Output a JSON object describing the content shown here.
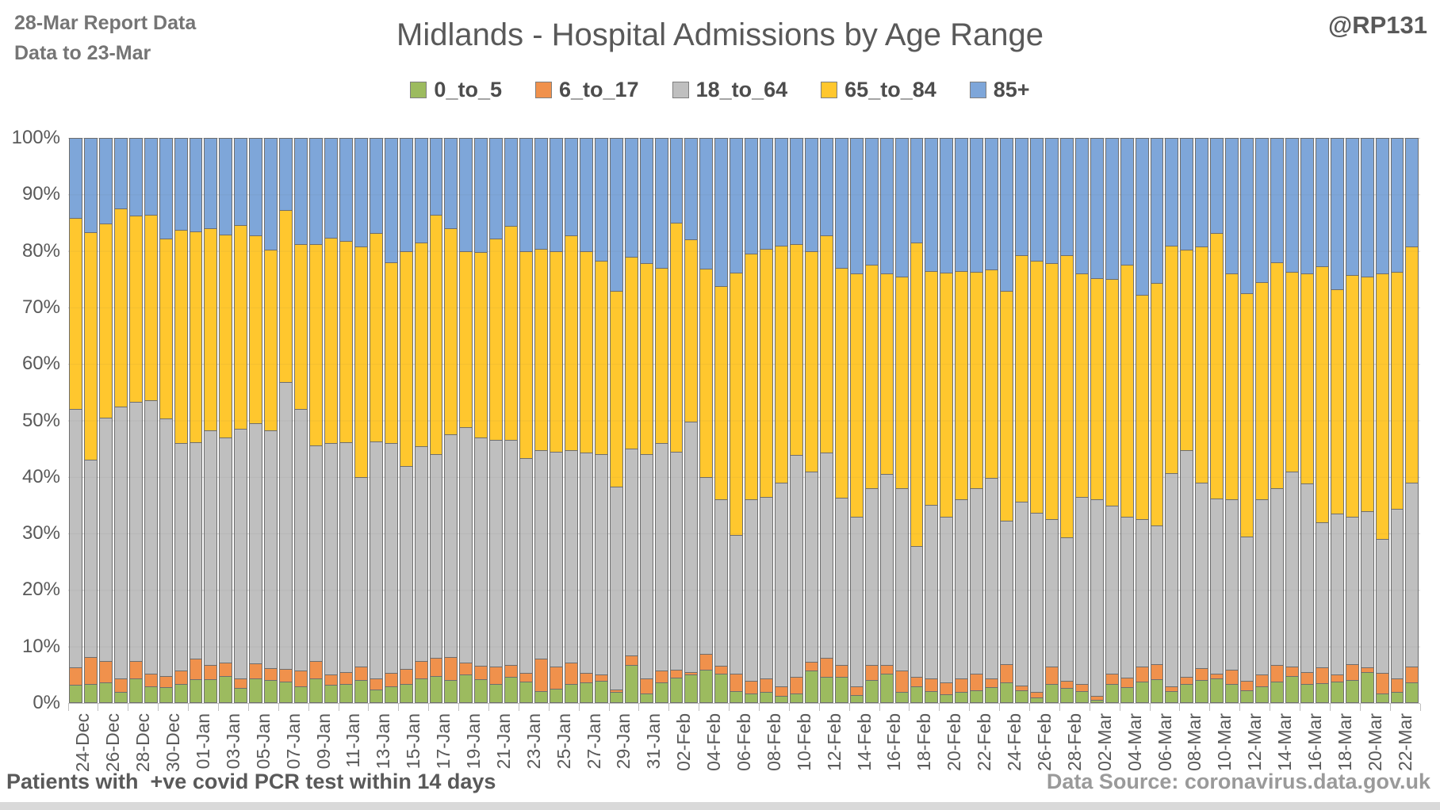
{
  "header": {
    "report_line1": "28-Mar Report Data",
    "report_line2": "Data to 23-Mar",
    "title": "Midlands - Hospital Admissions by Age Range",
    "handle": "@RP131"
  },
  "footer": {
    "left": "Patients with  +ve covid PCR test within 14 days",
    "right": "Data Source: coronavirus.data.gov.uk"
  },
  "legend": [
    {
      "label": "0_to_5",
      "color": "#9CBB5F"
    },
    {
      "label": "6_to_17",
      "color": "#F0914C"
    },
    {
      "label": "18_to_64",
      "color": "#BFBFBF"
    },
    {
      "label": "65_to_84",
      "color": "#FFC72E"
    },
    {
      "label": "85+",
      "color": "#7EA6D9"
    }
  ],
  "y_axis": {
    "ticks": [
      "100%",
      "90%",
      "80%",
      "70%",
      "60%",
      "50%",
      "40%",
      "30%",
      "20%",
      "10%",
      "0%"
    ]
  },
  "chart_data": {
    "type": "bar",
    "stacked": true,
    "stack_mode": "percent",
    "title": "Midlands - Hospital Admissions by Age Range",
    "xlabel": "",
    "ylabel": "",
    "ylim": [
      0,
      100
    ],
    "grid": true,
    "legend_position": "top",
    "categories": [
      "24-Dec",
      "25-Dec",
      "26-Dec",
      "27-Dec",
      "28-Dec",
      "29-Dec",
      "30-Dec",
      "31-Dec",
      "01-Jan",
      "02-Jan",
      "03-Jan",
      "04-Jan",
      "05-Jan",
      "06-Jan",
      "07-Jan",
      "08-Jan",
      "09-Jan",
      "10-Jan",
      "11-Jan",
      "12-Jan",
      "13-Jan",
      "14-Jan",
      "15-Jan",
      "16-Jan",
      "17-Jan",
      "18-Jan",
      "19-Jan",
      "20-Jan",
      "21-Jan",
      "22-Jan",
      "23-Jan",
      "24-Jan",
      "25-Jan",
      "26-Jan",
      "27-Jan",
      "28-Jan",
      "29-Jan",
      "30-Jan",
      "31-Jan",
      "01-Feb",
      "02-Feb",
      "03-Feb",
      "04-Feb",
      "05-Feb",
      "06-Feb",
      "07-Feb",
      "08-Feb",
      "09-Feb",
      "10-Feb",
      "11-Feb",
      "12-Feb",
      "13-Feb",
      "14-Feb",
      "15-Feb",
      "16-Feb",
      "17-Feb",
      "18-Feb",
      "19-Feb",
      "20-Feb",
      "21-Feb",
      "22-Feb",
      "23-Feb",
      "24-Feb",
      "25-Feb",
      "26-Feb",
      "27-Feb",
      "28-Feb",
      "01-Mar",
      "02-Mar",
      "03-Mar",
      "04-Mar",
      "05-Mar",
      "06-Mar",
      "07-Mar",
      "08-Mar",
      "09-Mar",
      "10-Mar",
      "11-Mar",
      "12-Mar",
      "13-Mar",
      "14-Mar",
      "15-Mar",
      "16-Mar",
      "17-Mar",
      "18-Mar",
      "19-Mar",
      "20-Mar",
      "21-Mar",
      "22-Mar",
      "23-Mar"
    ],
    "x_tick_labels": [
      "24-Dec",
      "26-Dec",
      "28-Dec",
      "30-Dec",
      "01-Jan",
      "03-Jan",
      "05-Jan",
      "07-Jan",
      "09-Jan",
      "11-Jan",
      "13-Jan",
      "15-Jan",
      "17-Jan",
      "19-Jan",
      "21-Jan",
      "23-Jan",
      "25-Jan",
      "27-Jan",
      "29-Jan",
      "31-Jan",
      "02-Feb",
      "04-Feb",
      "06-Feb",
      "08-Feb",
      "10-Feb",
      "12-Feb",
      "14-Feb",
      "16-Feb",
      "18-Feb",
      "20-Feb",
      "22-Feb",
      "24-Feb",
      "26-Feb",
      "28-Feb",
      "02-Mar",
      "04-Mar",
      "06-Mar",
      "08-Mar",
      "10-Mar",
      "12-Mar",
      "14-Mar",
      "16-Mar",
      "18-Mar",
      "20-Mar",
      "22-Mar"
    ],
    "series": [
      {
        "name": "0_to_5",
        "color": "#9CBB5F",
        "values": [
          3.2,
          3.3,
          3.6,
          2.0,
          4.4,
          3.0,
          2.8,
          3.4,
          4.2,
          4.2,
          4.8,
          2.6,
          4.4,
          4.0,
          3.8,
          3.0,
          4.4,
          3.2,
          3.4,
          4.0,
          2.4,
          3.0,
          3.4,
          4.4,
          4.8,
          4.0,
          5.0,
          4.2,
          3.3,
          4.6,
          3.8,
          2.1,
          2.5,
          3.3,
          3.6,
          3.9,
          1.9,
          6.8,
          1.7,
          3.6,
          4.5,
          5.0,
          5.9,
          5.2,
          2.1,
          1.7,
          1.9,
          1.2,
          1.7,
          5.7,
          4.7,
          4.7,
          1.4,
          4.0,
          5.2,
          1.9,
          2.9,
          2.1,
          1.5,
          2.0,
          2.2,
          2.8,
          3.6,
          2.3,
          1.0,
          3.3,
          2.6,
          2.1,
          0.5,
          3.3,
          2.8,
          3.8,
          4.2,
          2.1,
          3.3,
          4.0,
          4.3,
          3.3,
          2.2,
          3.0,
          3.8,
          4.8,
          3.4,
          3.5,
          3.8,
          4.0,
          5.5,
          1.7,
          2.0,
          3.6
        ]
      },
      {
        "name": "6_to_17",
        "color": "#F0914C",
        "values": [
          3.1,
          4.9,
          3.8,
          2.4,
          3.0,
          2.2,
          2.0,
          2.4,
          3.6,
          2.6,
          2.4,
          1.8,
          2.6,
          2.2,
          2.2,
          2.8,
          3.0,
          1.8,
          2.1,
          2.5,
          2.0,
          2.4,
          2.6,
          3.0,
          3.2,
          4.2,
          2.1,
          2.4,
          3.1,
          2.2,
          1.6,
          5.7,
          3.9,
          3.8,
          1.8,
          1.1,
          0.5,
          1.6,
          2.6,
          2.1,
          1.4,
          0.5,
          2.8,
          1.4,
          3.1,
          2.3,
          2.4,
          1.7,
          3.0,
          1.6,
          3.3,
          2.1,
          1.5,
          2.8,
          1.6,
          3.8,
          1.8,
          2.2,
          2.1,
          2.4,
          3.0,
          1.6,
          3.3,
          0.8,
          1.0,
          3.1,
          1.4,
          1.2,
          0.7,
          1.9,
          1.7,
          2.7,
          2.7,
          0.9,
          1.4,
          2.2,
          0.9,
          2.6,
          1.8,
          2.0,
          3.0,
          1.7,
          2.1,
          2.8,
          1.2,
          2.9,
          0.8,
          3.7,
          2.3,
          2.8
        ]
      },
      {
        "name": "18_to_64",
        "color": "#BFBFBF",
        "values": [
          45.7,
          34.8,
          43.1,
          48.1,
          45.9,
          48.4,
          45.6,
          40.2,
          38.4,
          41.4,
          39.8,
          44.2,
          42.5,
          42.0,
          50.8,
          46.2,
          38.2,
          41.0,
          40.7,
          33.5,
          41.9,
          40.6,
          36.0,
          38.1,
          36.0,
          39.3,
          41.7,
          40.4,
          40.1,
          39.8,
          38.0,
          37.0,
          38.1,
          37.7,
          38.9,
          39.0,
          35.9,
          36.6,
          39.7,
          40.3,
          38.6,
          44.3,
          31.3,
          29.4,
          24.6,
          32.0,
          32.1,
          36.1,
          39.2,
          33.7,
          36.3,
          29.5,
          30.1,
          31.2,
          33.7,
          32.3,
          23.1,
          30.7,
          29.4,
          31.6,
          32.8,
          35.4,
          25.4,
          32.5,
          31.7,
          26.1,
          25.3,
          33.2,
          34.9,
          29.7,
          28.5,
          26.0,
          24.5,
          37.7,
          40.1,
          32.8,
          31.0,
          30.1,
          25.5,
          31.0,
          31.2,
          34.5,
          33.3,
          25.7,
          28.5,
          26.1,
          27.7,
          23.6,
          30.0,
          32.6
        ]
      },
      {
        "name": "65_to_84",
        "color": "#FFC72E",
        "values": [
          33.8,
          40.3,
          34.3,
          35.0,
          32.9,
          32.8,
          31.8,
          37.8,
          37.2,
          35.8,
          35.9,
          36.0,
          33.3,
          32.1,
          30.4,
          29.2,
          35.6,
          36.3,
          35.6,
          40.8,
          36.9,
          32.0,
          38.0,
          36.0,
          42.4,
          36.5,
          31.2,
          32.8,
          35.7,
          37.8,
          36.6,
          35.5,
          35.5,
          38.0,
          35.6,
          34.2,
          34.7,
          34.0,
          33.9,
          31.0,
          40.5,
          32.2,
          36.8,
          37.8,
          46.4,
          43.5,
          43.9,
          42.0,
          37.3,
          39.0,
          38.5,
          40.7,
          43.0,
          39.5,
          35.5,
          37.5,
          53.7,
          41.5,
          43.2,
          40.5,
          38.3,
          36.9,
          40.7,
          43.7,
          44.5,
          45.3,
          50.0,
          39.5,
          39.1,
          40.1,
          44.6,
          39.8,
          43.0,
          40.3,
          35.5,
          41.8,
          47.0,
          40.0,
          43.0,
          38.5,
          40.0,
          35.3,
          37.2,
          45.3,
          39.7,
          42.8,
          41.5,
          47.0,
          42.0,
          41.8
        ]
      },
      {
        "name": "85+",
        "color": "#7EA6D9",
        "values": [
          14.2,
          16.7,
          15.2,
          12.5,
          13.8,
          13.6,
          17.8,
          16.2,
          16.6,
          16.0,
          17.1,
          15.4,
          17.2,
          19.7,
          12.8,
          18.8,
          18.8,
          17.7,
          18.2,
          19.2,
          16.8,
          22.0,
          20.0,
          18.5,
          13.6,
          16.0,
          20.0,
          20.2,
          17.8,
          15.6,
          20.0,
          19.7,
          20.0,
          17.2,
          20.1,
          21.8,
          27.0,
          21.0,
          22.1,
          23.0,
          15.0,
          18.0,
          23.2,
          26.2,
          23.8,
          20.5,
          19.7,
          19.0,
          18.8,
          20.0,
          17.2,
          23.0,
          24.0,
          22.5,
          24.0,
          24.5,
          18.5,
          23.5,
          23.8,
          23.5,
          23.7,
          23.3,
          27.0,
          20.7,
          21.8,
          22.2,
          20.7,
          24.0,
          24.8,
          25.0,
          22.4,
          27.7,
          25.6,
          19.0,
          19.7,
          19.2,
          16.8,
          24.0,
          27.5,
          25.5,
          22.0,
          23.7,
          24.0,
          22.7,
          26.8,
          24.2,
          24.5,
          24.0,
          23.7,
          19.2
        ]
      }
    ]
  }
}
